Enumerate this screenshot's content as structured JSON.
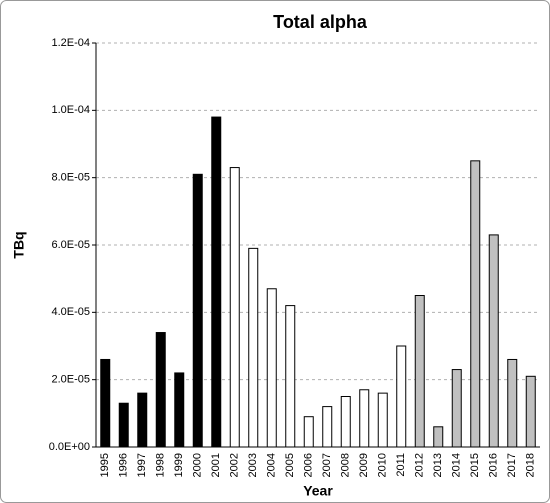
{
  "chart_data": {
    "type": "bar",
    "title": "Total alpha",
    "x_label": "Year",
    "y_label": "TBq",
    "categories": [
      "1995",
      "1996",
      "1997",
      "1998",
      "1999",
      "2000",
      "2001",
      "2002",
      "2003",
      "2004",
      "2005",
      "2006",
      "2007",
      "2008",
      "2009",
      "2010",
      "2011",
      "2012",
      "2013",
      "2014",
      "2015",
      "2016",
      "2017",
      "2018"
    ],
    "values": [
      2.6e-05,
      1.3e-05,
      1.6e-05,
      3.4e-05,
      2.2e-05,
      8.1e-05,
      9.8e-05,
      8.3e-05,
      5.9e-05,
      4.7e-05,
      4.2e-05,
      9e-06,
      1.2e-05,
      1.5e-05,
      1.7e-05,
      1.6e-05,
      3e-05,
      4.5e-05,
      6e-06,
      2.3e-05,
      8.5e-05,
      6.3e-05,
      2.6e-05,
      2.1e-05
    ],
    "colors": [
      "#000000",
      "#000000",
      "#000000",
      "#000000",
      "#000000",
      "#000000",
      "#000000",
      "#ffffff",
      "#ffffff",
      "#ffffff",
      "#ffffff",
      "#ffffff",
      "#ffffff",
      "#ffffff",
      "#ffffff",
      "#ffffff",
      "#ffffff",
      "#c0c0c0",
      "#c0c0c0",
      "#c0c0c0",
      "#c0c0c0",
      "#c0c0c0",
      "#c0c0c0",
      "#c0c0c0"
    ],
    "ylim": [
      0,
      0.00012
    ],
    "yticks": [
      {
        "value": 0,
        "label": "0.0E+00"
      },
      {
        "value": 2e-05,
        "label": "2.0E-05"
      },
      {
        "value": 4e-05,
        "label": "4.0E-05"
      },
      {
        "value": 6e-05,
        "label": "6.0E-05"
      },
      {
        "value": 8e-05,
        "label": "8.0E-05"
      },
      {
        "value": 0.0001,
        "label": "1.0E-04"
      },
      {
        "value": 0.00012,
        "label": "1.2E-04"
      }
    ],
    "grid": true
  }
}
